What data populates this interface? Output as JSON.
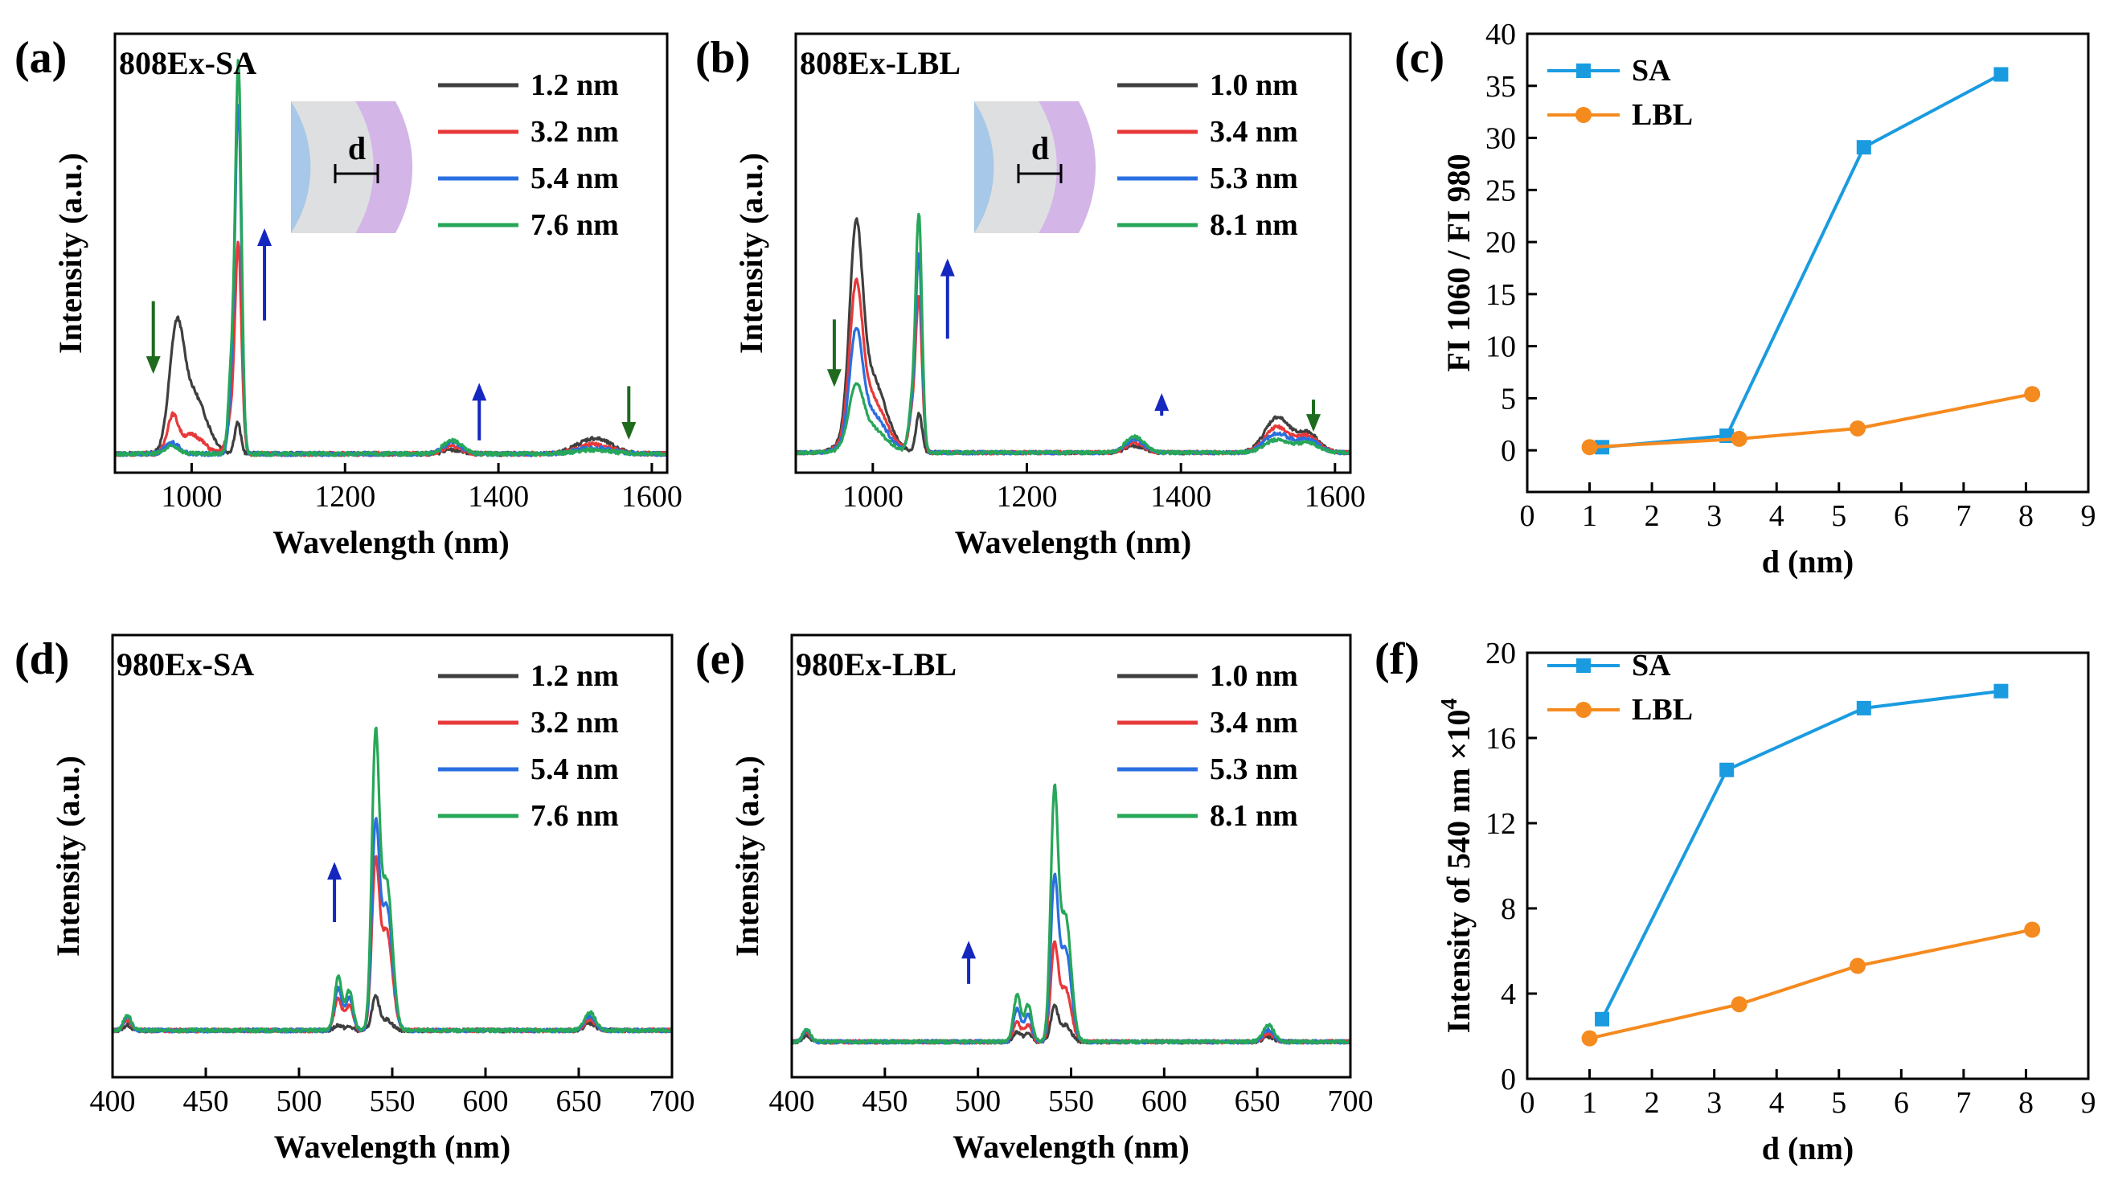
{
  "colors": {
    "c1": "#3f3f3f",
    "c2": "#e8393a",
    "c3": "#2a6fe0",
    "c4": "#27a759",
    "sa": "#1a9be0",
    "lbl": "#f58a1f",
    "arrowDown": "#1e6b1e",
    "arrowUp": "#1428c0",
    "core": "#a7c8e8",
    "mid": "#dedfe0",
    "shell": "#d3b5e8"
  },
  "chart_data": [
    {
      "id": "a",
      "panel_label": "(a)",
      "type": "line",
      "title": "808Ex-SA",
      "xlabel": "Wavelength (nm)",
      "ylabel": "Intensity (a.u.)",
      "xlim": [
        900,
        1620
      ],
      "xticks": [
        1000,
        1200,
        1400,
        1600
      ],
      "xtick_labels": [
        "1000",
        "1200",
        "1400",
        "1600"
      ],
      "ylim": [
        0,
        100
      ],
      "inset": {
        "label": "d"
      },
      "series": [
        {
          "name": "1.2 nm",
          "color": "#3f3f3f",
          "peaks": [
            [
              980,
              26,
              9
            ],
            [
              1000,
              16,
              18
            ],
            [
              1060,
              8,
              4
            ],
            [
              1340,
              1,
              12
            ],
            [
              1525,
              4,
              22
            ]
          ]
        },
        {
          "name": "3.2 nm",
          "color": "#e8393a",
          "peaks": [
            [
              975,
              9,
              7
            ],
            [
              1000,
              5,
              15
            ],
            [
              1061,
              46,
              4
            ],
            [
              1055,
              12,
              7
            ],
            [
              1340,
              2,
              12
            ],
            [
              1525,
              2.5,
              22
            ]
          ]
        },
        {
          "name": "5.4 nm",
          "color": "#2a6fe0",
          "peaks": [
            [
              975,
              3,
              9
            ],
            [
              1061,
              88,
              4
            ],
            [
              1053,
              18,
              4
            ],
            [
              1340,
              3,
              12
            ],
            [
              1525,
              1.5,
              24
            ]
          ]
        },
        {
          "name": "7.6 nm",
          "color": "#27a759",
          "peaks": [
            [
              975,
              2,
              9
            ],
            [
              1061,
              100,
              4
            ],
            [
              1052,
              22,
              4
            ],
            [
              1340,
              3.5,
              12
            ],
            [
              1525,
              1,
              24
            ]
          ]
        }
      ],
      "arrows": [
        {
          "dir": "down",
          "x": 950,
          "y1": 40,
          "y2": 22
        },
        {
          "dir": "up",
          "x": 1095,
          "y1": 35,
          "y2": 58
        },
        {
          "dir": "up",
          "x": 1375,
          "y1": 4,
          "y2": 18
        },
        {
          "dir": "down",
          "x": 1570,
          "y1": 18,
          "y2": 5
        }
      ]
    },
    {
      "id": "b",
      "panel_label": "(b)",
      "type": "line",
      "title": "808Ex-LBL",
      "xlabel": "Wavelength (nm)",
      "ylabel": "Intensity (a.u.)",
      "xlim": [
        900,
        1620
      ],
      "xticks": [
        1000,
        1200,
        1400,
        1600
      ],
      "xtick_labels": [
        "1000",
        "1200",
        "1400",
        "1600"
      ],
      "ylim": [
        0,
        100
      ],
      "inset": {
        "label": "d"
      },
      "series": [
        {
          "name": "1.0 nm",
          "color": "#3f3f3f",
          "peaks": [
            [
              978,
              55,
              8
            ],
            [
              995,
              25,
              20
            ],
            [
              1060,
              12,
              4
            ],
            [
              1340,
              2,
              12
            ],
            [
              1525,
              11,
              16
            ],
            [
              1565,
              6,
              14
            ]
          ]
        },
        {
          "name": "3.4 nm",
          "color": "#e8393a",
          "peaks": [
            [
              978,
              41,
              8
            ],
            [
              995,
              18,
              20
            ],
            [
              1060,
              45,
              4
            ],
            [
              1052,
              12,
              5
            ],
            [
              1340,
              3,
              12
            ],
            [
              1525,
              8,
              16
            ],
            [
              1565,
              5,
              14
            ]
          ]
        },
        {
          "name": "5.3 nm",
          "color": "#2a6fe0",
          "peaks": [
            [
              978,
              30,
              8
            ],
            [
              995,
              13,
              20
            ],
            [
              1060,
              58,
              4
            ],
            [
              1052,
              14,
              5
            ],
            [
              1340,
              4,
              12
            ],
            [
              1525,
              6,
              16
            ],
            [
              1565,
              4,
              14
            ]
          ]
        },
        {
          "name": "8.1 nm",
          "color": "#27a759",
          "peaks": [
            [
              978,
              16,
              9
            ],
            [
              995,
              8,
              20
            ],
            [
              1060,
              70,
              4
            ],
            [
              1052,
              16,
              5
            ],
            [
              1340,
              5,
              12
            ],
            [
              1525,
              4,
              16
            ],
            [
              1565,
              3,
              14
            ]
          ]
        }
      ],
      "arrows": [
        {
          "dir": "down",
          "x": 950,
          "y1": 42,
          "y2": 22
        },
        {
          "dir": "up",
          "x": 1097,
          "y1": 36,
          "y2": 60
        },
        {
          "dir": "up",
          "x": 1375,
          "y1": 12,
          "y2": 18
        },
        {
          "dir": "down",
          "x": 1572,
          "y1": 17,
          "y2": 8
        }
      ]
    },
    {
      "id": "c",
      "panel_label": "(c)",
      "type": "line",
      "xlabel": "d (nm)",
      "ylabel": "FI 1060 / FI 980",
      "xlim": [
        0,
        9
      ],
      "ylim": [
        -4,
        40
      ],
      "xticks": [
        0,
        1,
        2,
        3,
        4,
        5,
        6,
        7,
        8,
        9
      ],
      "xtick_labels": [
        "0",
        "1",
        "2",
        "3",
        "4",
        "5",
        "6",
        "7",
        "8",
        "9"
      ],
      "yticks": [
        0,
        5,
        10,
        15,
        20,
        25,
        30,
        35,
        40
      ],
      "ytick_labels": [
        "0",
        "5",
        "10",
        "15",
        "20",
        "25",
        "30",
        "35",
        "40"
      ],
      "series": [
        {
          "name": "SA",
          "marker": "square",
          "color": "#1a9be0",
          "x": [
            1.2,
            3.2,
            5.4,
            7.6
          ],
          "y": [
            0.3,
            1.4,
            29.1,
            36.1
          ]
        },
        {
          "name": "LBL",
          "marker": "circle",
          "color": "#f58a1f",
          "x": [
            1.0,
            3.4,
            5.3,
            8.1
          ],
          "y": [
            0.3,
            1.1,
            2.1,
            5.4
          ]
        }
      ]
    },
    {
      "id": "d",
      "panel_label": "(d)",
      "type": "line",
      "title": "980Ex-SA",
      "xlabel": "Wavelength (nm)",
      "ylabel": "Intensity (a.u.)",
      "xlim": [
        400,
        700
      ],
      "xticks": [
        400,
        450,
        500,
        550,
        600,
        650,
        700
      ],
      "xtick_labels": [
        "400",
        "450",
        "500",
        "550",
        "600",
        "650",
        "700"
      ],
      "ylim": [
        0,
        100
      ],
      "series": [
        {
          "name": "1.2 nm",
          "color": "#3f3f3f",
          "peaks": [
            [
              408,
              1.5,
              2
            ],
            [
              521,
              1.5,
              2
            ],
            [
              527,
              1,
              2
            ],
            [
              541,
              9,
              2
            ],
            [
              547,
              3,
              3
            ],
            [
              656,
              2,
              3
            ]
          ]
        },
        {
          "name": "3.2 nm",
          "color": "#e8393a",
          "peaks": [
            [
              408,
              3,
              2
            ],
            [
              521,
              9,
              2
            ],
            [
              527,
              7,
              2
            ],
            [
              541,
              45,
              2
            ],
            [
              547,
              28,
              3
            ],
            [
              656,
              3,
              3
            ]
          ]
        },
        {
          "name": "5.4 nm",
          "color": "#2a6fe0",
          "peaks": [
            [
              408,
              4,
              2
            ],
            [
              521,
              12,
              2
            ],
            [
              527,
              9,
              2
            ],
            [
              541,
              55,
              2
            ],
            [
              547,
              35,
              3
            ],
            [
              656,
              4,
              3
            ]
          ]
        },
        {
          "name": "7.6 nm",
          "color": "#27a759",
          "peaks": [
            [
              408,
              4.5,
              2
            ],
            [
              521,
              15,
              2
            ],
            [
              527,
              11,
              2
            ],
            [
              541,
              79,
              2
            ],
            [
              547,
              42,
              3
            ],
            [
              656,
              5,
              3
            ]
          ]
        }
      ],
      "arrows": [
        {
          "dir": "up",
          "x": 519,
          "y1": 31,
          "y2": 47
        }
      ]
    },
    {
      "id": "e",
      "panel_label": "(e)",
      "type": "line",
      "title": "980Ex-LBL",
      "xlabel": "Wavelength (nm)",
      "ylabel": "Intensity (a.u.)",
      "xlim": [
        400,
        700
      ],
      "xticks": [
        400,
        450,
        500,
        550,
        600,
        650,
        700
      ],
      "xtick_labels": [
        "400",
        "450",
        "500",
        "550",
        "600",
        "650",
        "700"
      ],
      "ylim": [
        0,
        100
      ],
      "series": [
        {
          "name": "1.0 nm",
          "color": "#3f3f3f",
          "peaks": [
            [
              408,
              2,
              2
            ],
            [
              521,
              3,
              2
            ],
            [
              527,
              2.5,
              2
            ],
            [
              541,
              10,
              2
            ],
            [
              547,
              5,
              3
            ],
            [
              656,
              1.5,
              3
            ]
          ]
        },
        {
          "name": "3.4 nm",
          "color": "#e8393a",
          "peaks": [
            [
              408,
              3,
              2
            ],
            [
              521,
              6,
              2
            ],
            [
              527,
              5,
              2
            ],
            [
              541,
              28,
              2
            ],
            [
              547,
              16,
              3
            ],
            [
              656,
              2.5,
              3
            ]
          ]
        },
        {
          "name": "5.3 nm",
          "color": "#2a6fe0",
          "peaks": [
            [
              408,
              3.5,
              2
            ],
            [
              521,
              10,
              2
            ],
            [
              527,
              8,
              2
            ],
            [
              541,
              47,
              2
            ],
            [
              547,
              28,
              3
            ],
            [
              656,
              3.5,
              3
            ]
          ]
        },
        {
          "name": "8.1 nm",
          "color": "#27a759",
          "peaks": [
            [
              408,
              4,
              2
            ],
            [
              521,
              14,
              2
            ],
            [
              527,
              11,
              2
            ],
            [
              541,
              72,
              2
            ],
            [
              547,
              38,
              3
            ],
            [
              656,
              5,
              3
            ]
          ]
        }
      ],
      "arrows": [
        {
          "dir": "up",
          "x": 495,
          "y1": 18,
          "y2": 30
        }
      ]
    },
    {
      "id": "f",
      "panel_label": "(f)",
      "type": "line",
      "xlabel": "d (nm)",
      "ylabel": "Intensity of 540 nm ×10",
      "ylabel_sup": "4",
      "xlim": [
        0,
        9
      ],
      "ylim": [
        0,
        20
      ],
      "xticks": [
        0,
        1,
        2,
        3,
        4,
        5,
        6,
        7,
        8,
        9
      ],
      "xtick_labels": [
        "0",
        "1",
        "2",
        "3",
        "4",
        "5",
        "6",
        "7",
        "8",
        "9"
      ],
      "yticks": [
        0,
        4,
        8,
        12,
        16,
        20
      ],
      "ytick_labels": [
        "0",
        "4",
        "8",
        "12",
        "16",
        "20"
      ],
      "series": [
        {
          "name": "SA",
          "marker": "square",
          "color": "#1a9be0",
          "x": [
            1.2,
            3.2,
            5.4,
            7.6
          ],
          "y": [
            2.8,
            14.5,
            17.4,
            18.2
          ]
        },
        {
          "name": "LBL",
          "marker": "circle",
          "color": "#f58a1f",
          "x": [
            1.0,
            3.4,
            5.3,
            8.1
          ],
          "y": [
            1.9,
            3.5,
            5.3,
            7.0
          ]
        }
      ]
    }
  ]
}
